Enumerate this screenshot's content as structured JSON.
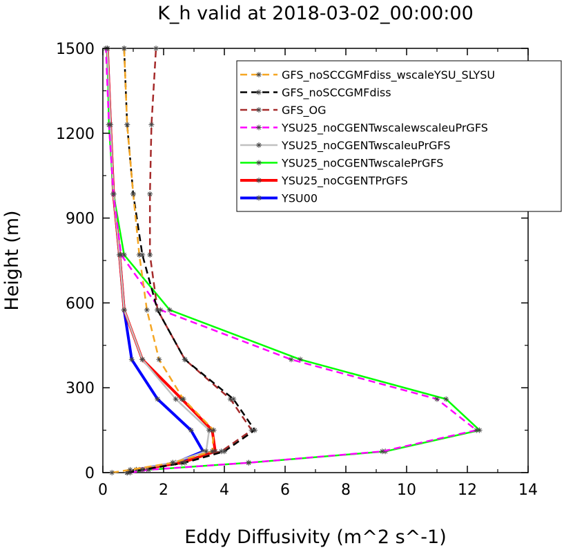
{
  "chart_data": {
    "type": "line",
    "title": "K_h valid at 2018-03-02_00:00:00",
    "xlabel": "Eddy Diffusivity (m^2 s^-1)",
    "ylabel": "Height (m)",
    "xlim": [
      0,
      14
    ],
    "ylim": [
      0,
      1500
    ],
    "x_ticks": [
      "0",
      "2",
      "4",
      "6",
      "8",
      "10",
      "12",
      "14"
    ],
    "y_ticks": [
      "0",
      "300",
      "600",
      "900",
      "1200",
      "1500"
    ],
    "grid": false,
    "legend_position": "top-right",
    "series": [
      {
        "name": "GFS_noSCCGMFdiss_wscaleYSU_SLYSU",
        "color": "#f5a623",
        "dash": "dashed",
        "x": [
          0.3,
          0.9,
          2.3,
          3.6,
          3.65,
          2.65,
          1.85,
          1.45,
          1.2,
          1.0,
          0.8,
          0.7
        ],
        "y": [
          0,
          10,
          35,
          75,
          150,
          260,
          400,
          575,
          770,
          985,
          1230,
          1500
        ]
      },
      {
        "name": "GFS_noSCCGMFdiss",
        "color": "#000000",
        "dash": "dashed",
        "x": [
          0.8,
          1.3,
          2.7,
          4.0,
          5.0,
          4.3,
          2.7,
          1.8,
          1.3,
          1.0,
          0.8,
          0.7
        ],
        "y": [
          0,
          10,
          35,
          75,
          150,
          260,
          400,
          575,
          770,
          985,
          1230,
          1500
        ]
      },
      {
        "name": "GFS_OG",
        "color": "#a52a2a",
        "dash": "dashed",
        "x": [
          0.8,
          1.2,
          2.6,
          3.9,
          4.9,
          4.2,
          2.7,
          1.8,
          1.55,
          1.55,
          1.6,
          1.75
        ],
        "y": [
          0,
          10,
          35,
          75,
          150,
          260,
          400,
          575,
          770,
          985,
          1230,
          1500
        ]
      },
      {
        "name": "YSU25_noCGENTwscalewscaleuPrGFS",
        "color": "#ff00ff",
        "dash": "dashed",
        "x": [
          0.9,
          1.5,
          4.8,
          9.2,
          12.3,
          11.0,
          6.2,
          1.9,
          0.6,
          0.35,
          0.2,
          0.1
        ],
        "y": [
          0,
          10,
          35,
          75,
          150,
          260,
          400,
          575,
          770,
          985,
          1230,
          1500
        ]
      },
      {
        "name": "YSU25_noCGENTwscaleuPrGFS",
        "color": "#c0c0c0",
        "dash": "solid",
        "x": [
          0.8,
          1.1,
          2.3,
          3.4,
          3.5,
          2.4,
          1.3,
          0.7,
          0.55,
          0.35,
          0.25,
          0.15
        ],
        "y": [
          0,
          10,
          35,
          75,
          150,
          260,
          400,
          575,
          770,
          985,
          1230,
          1500
        ]
      },
      {
        "name": "YSU25_noCGENTwscalePrGFS",
        "color": "#00ff00",
        "dash": "solid",
        "x": [
          0.8,
          1.5,
          4.8,
          9.3,
          12.4,
          11.3,
          6.5,
          2.2,
          0.7,
          0.35,
          0.2,
          0.15
        ],
        "y": [
          0,
          10,
          35,
          75,
          150,
          260,
          400,
          575,
          770,
          985,
          1230,
          1500
        ]
      },
      {
        "name": "YSU25_noCGENTPrGFS",
        "color": "#ff0000",
        "dash": "solid",
        "x": [
          0.8,
          1.1,
          2.6,
          3.7,
          3.6,
          2.6,
          1.3,
          0.7,
          0.55,
          0.35,
          0.25,
          0.15
        ],
        "y": [
          0,
          10,
          35,
          75,
          150,
          260,
          400,
          575,
          770,
          985,
          1230,
          1500
        ]
      },
      {
        "name": "YSU00",
        "color": "#0000ff",
        "dash": "solid",
        "x": [
          0.8,
          1.1,
          2.4,
          3.3,
          2.9,
          1.8,
          0.95,
          0.7,
          0.55,
          0.35,
          0.25,
          0.15
        ],
        "y": [
          0,
          10,
          35,
          75,
          150,
          260,
          400,
          575,
          770,
          985,
          1230,
          1500
        ]
      }
    ]
  }
}
